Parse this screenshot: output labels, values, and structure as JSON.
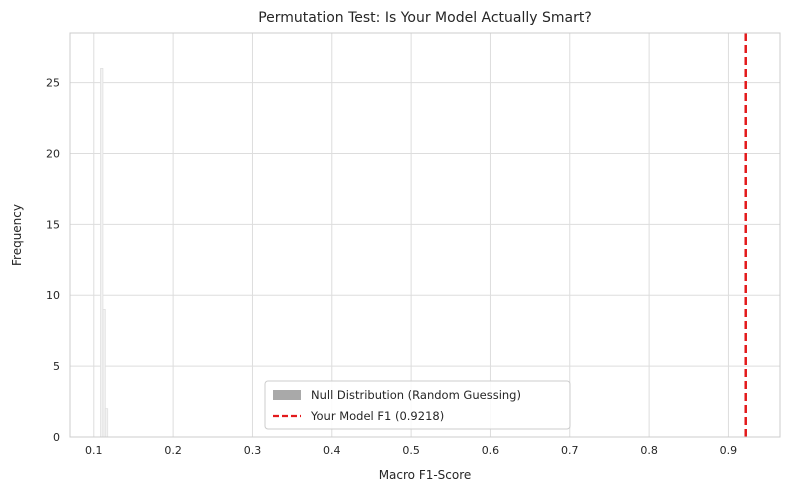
{
  "chart_data": {
    "type": "histogram",
    "title": "Permutation Test: Is Your Model Actually Smart?",
    "xlabel": "Macro F1-Score",
    "ylabel": "Frequency",
    "xlim": [
      0.07,
      0.965
    ],
    "ylim": [
      0,
      28.5
    ],
    "xticks": [
      "0.1",
      "0.2",
      "0.3",
      "0.4",
      "0.5",
      "0.6",
      "0.7",
      "0.8",
      "0.9"
    ],
    "yticks": [
      "0",
      "5",
      "10",
      "15",
      "20",
      "25"
    ],
    "grid": true,
    "legend_position": "lower center",
    "series": [
      {
        "name": "Null Distribution (Random Guessing)",
        "kind": "histogram",
        "color": "#a9a9a9",
        "bins": [
          {
            "x0": 0.1085,
            "x1": 0.1115,
            "count": 26
          },
          {
            "x0": 0.1115,
            "x1": 0.1145,
            "count": 9
          },
          {
            "x0": 0.1145,
            "x1": 0.1175,
            "count": 2
          }
        ]
      },
      {
        "name": "Your Model F1 (0.9218)",
        "kind": "vline",
        "x": 0.9218,
        "color": "#e31a1c",
        "style": "dashed"
      }
    ]
  }
}
